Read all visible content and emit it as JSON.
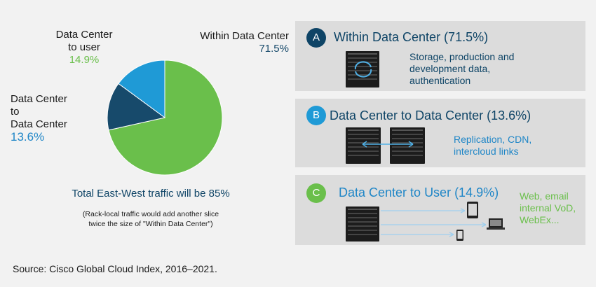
{
  "chart_data": {
    "type": "pie",
    "slices": [
      {
        "name": "Within Data Center",
        "value": 71.5,
        "color": "#6abf4b"
      },
      {
        "name": "Data Center to Data Center",
        "value": 13.6,
        "color": "#174a6b"
      },
      {
        "name": "Data Center to user",
        "value": 14.9,
        "color": "#1f9ad6"
      }
    ]
  },
  "labels": {
    "within_name": "Within Data Center",
    "within_pct": "71.5%",
    "dc2user_line1": "Data Center",
    "dc2user_line2": "to user",
    "dc2user_pct": "14.9%",
    "dc2dc_line1": "Data Center",
    "dc2dc_line2": "to",
    "dc2dc_line3": "Data Center",
    "dc2dc_pct": "13.6%"
  },
  "total_text": "Total East-West traffic will be 85%",
  "note_line1": "(Rack-local traffic would add another slice",
  "note_line2": "twice the size of \"Within Data Center\")",
  "source": "Source: Cisco Global Cloud Index, 2016–2021.",
  "panels": {
    "a": {
      "badge": "A",
      "title": "Within Data Center (71.5%)",
      "desc1": "Storage, production and",
      "desc2": "development data,",
      "desc3": "authentication",
      "color": "#0e4466"
    },
    "b": {
      "badge": "B",
      "title": "Data Center to Data Center (13.6%)",
      "desc1": "Replication, CDN,",
      "desc2": "intercloud links",
      "color": "#1f9ad6"
    },
    "c": {
      "badge": "C",
      "title": "Data Center to User (14.9%)",
      "desc1": "Web, email",
      "desc2": "internal VoD,",
      "desc3": "WebEx...",
      "color": "#6abf4b"
    }
  }
}
